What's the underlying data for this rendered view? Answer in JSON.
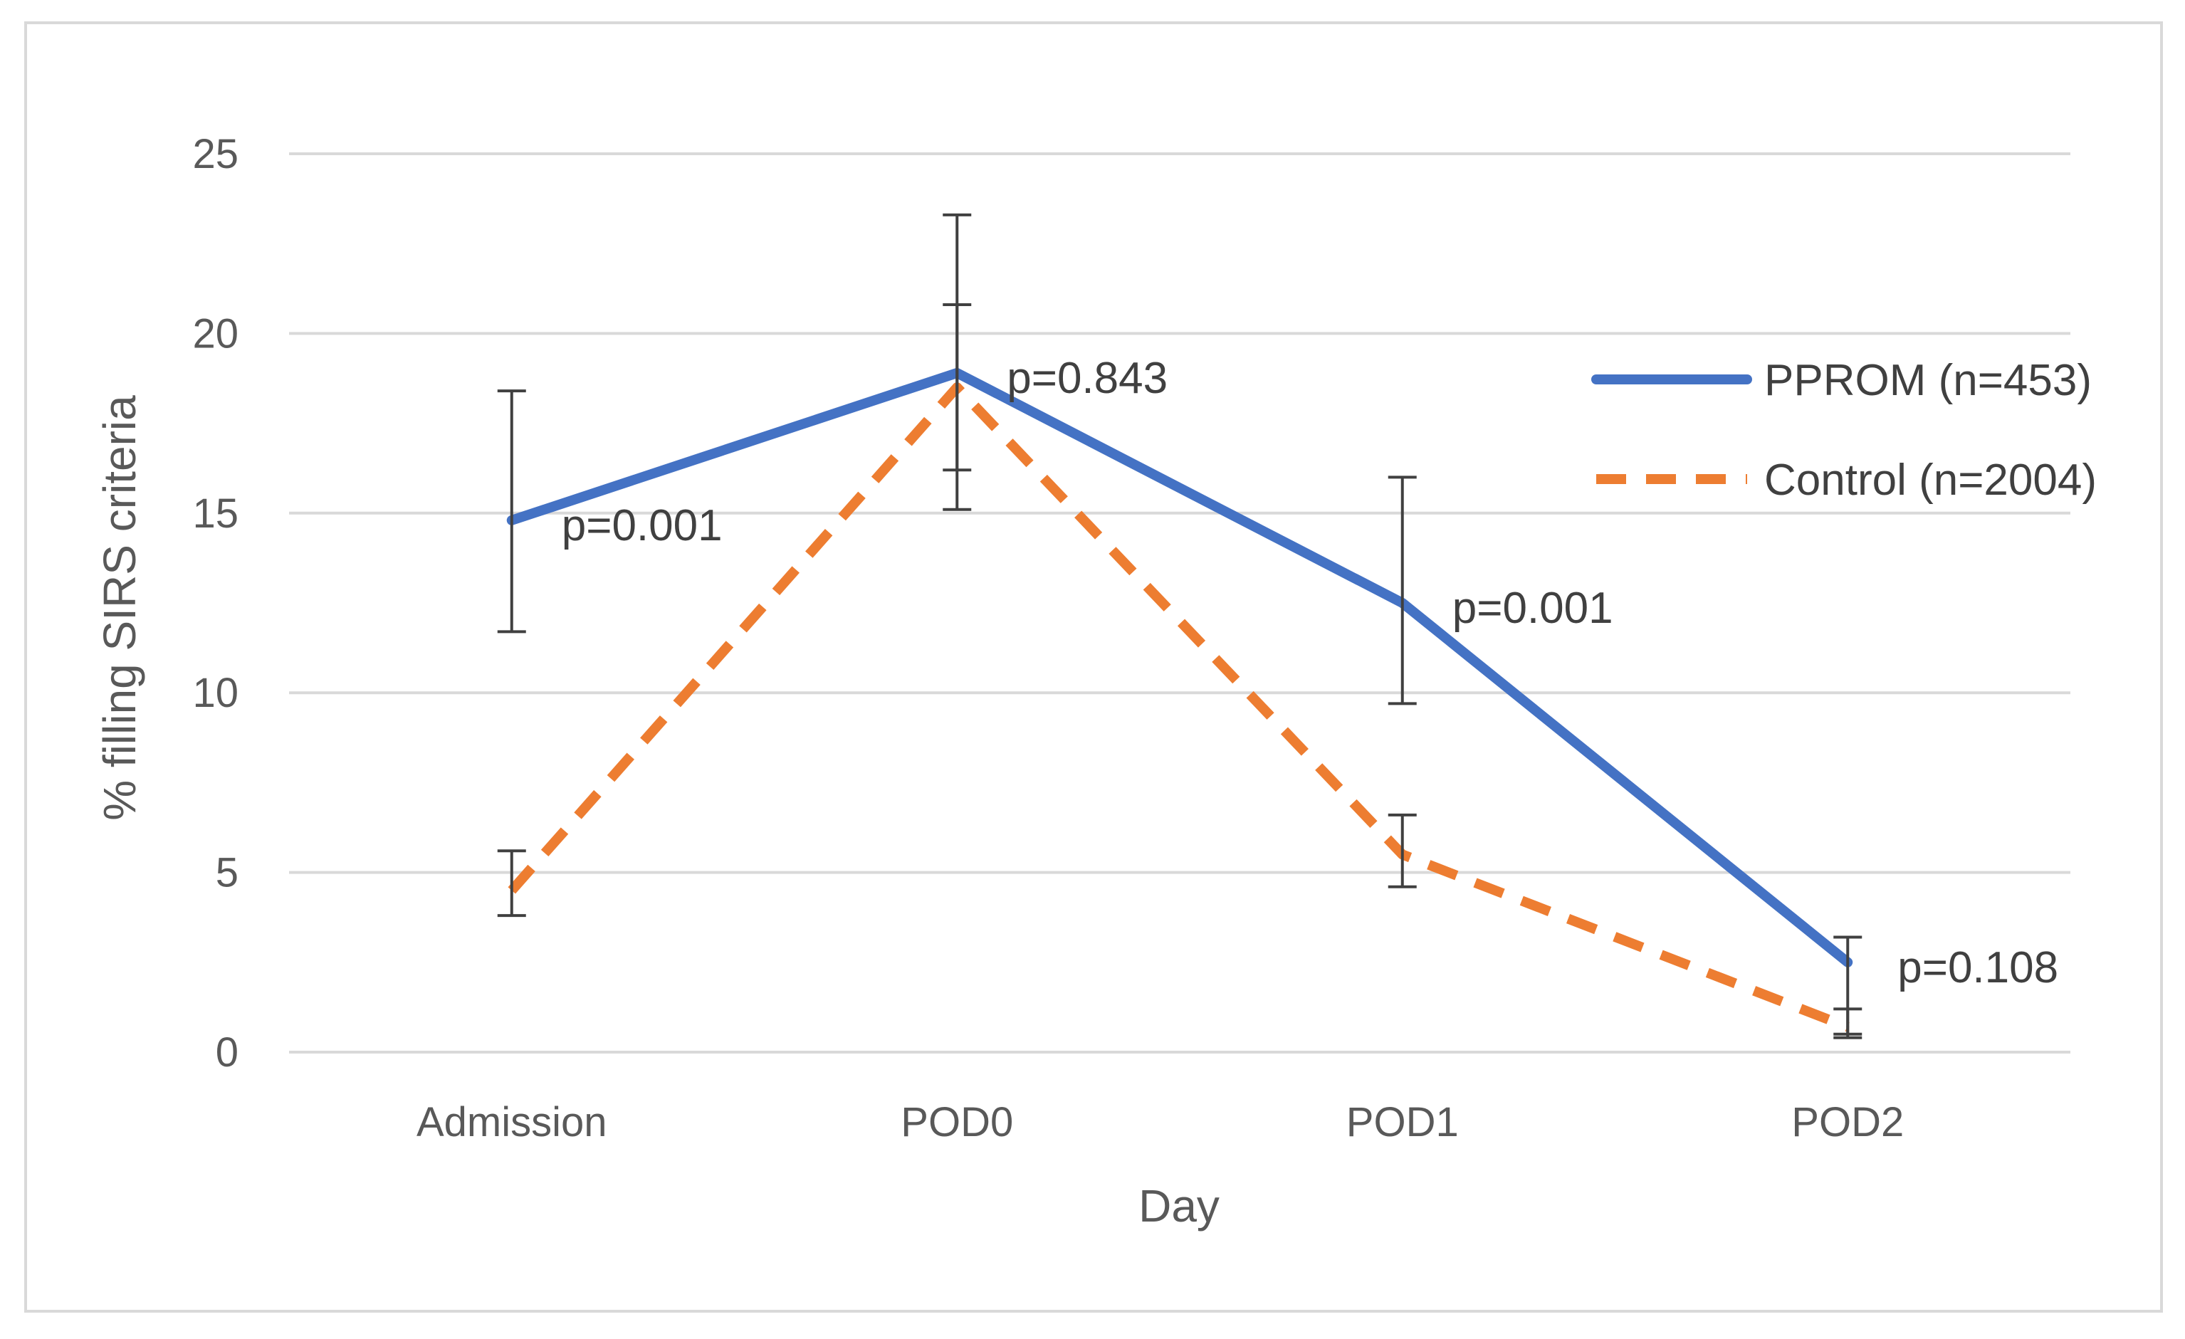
{
  "chart_data": {
    "type": "line",
    "title": "",
    "xlabel": "Day",
    "ylabel": "% filling SIRS criteria",
    "categories": [
      "Admission",
      "POD0",
      "POD1",
      "POD2"
    ],
    "ylim": [
      0,
      25
    ],
    "yticks": [
      0,
      5,
      10,
      15,
      20,
      25
    ],
    "grid": true,
    "legend_position": "right",
    "series": [
      {
        "name": "PPROM (n=453)",
        "color": "#4472C4",
        "style": "solid",
        "values": [
          14.8,
          18.9,
          12.5,
          2.5
        ],
        "error_low": [
          11.7,
          15.1,
          9.7,
          0.5
        ],
        "error_high": [
          18.4,
          23.3,
          16.0,
          3.2
        ]
      },
      {
        "name": "Control (n=2004)",
        "color": "#ED7D31",
        "style": "dashed",
        "values": [
          4.5,
          18.5,
          5.5,
          0.7
        ],
        "error_low": [
          3.8,
          16.2,
          4.6,
          0.4
        ],
        "error_high": [
          5.6,
          20.8,
          6.6,
          1.2
        ]
      }
    ],
    "annotations": [
      {
        "category": "Admission",
        "text": "p=0.001"
      },
      {
        "category": "POD0",
        "text": "p=0.843"
      },
      {
        "category": "POD1",
        "text": "p=0.001"
      },
      {
        "category": "POD2",
        "text": "p=0.108"
      }
    ]
  }
}
